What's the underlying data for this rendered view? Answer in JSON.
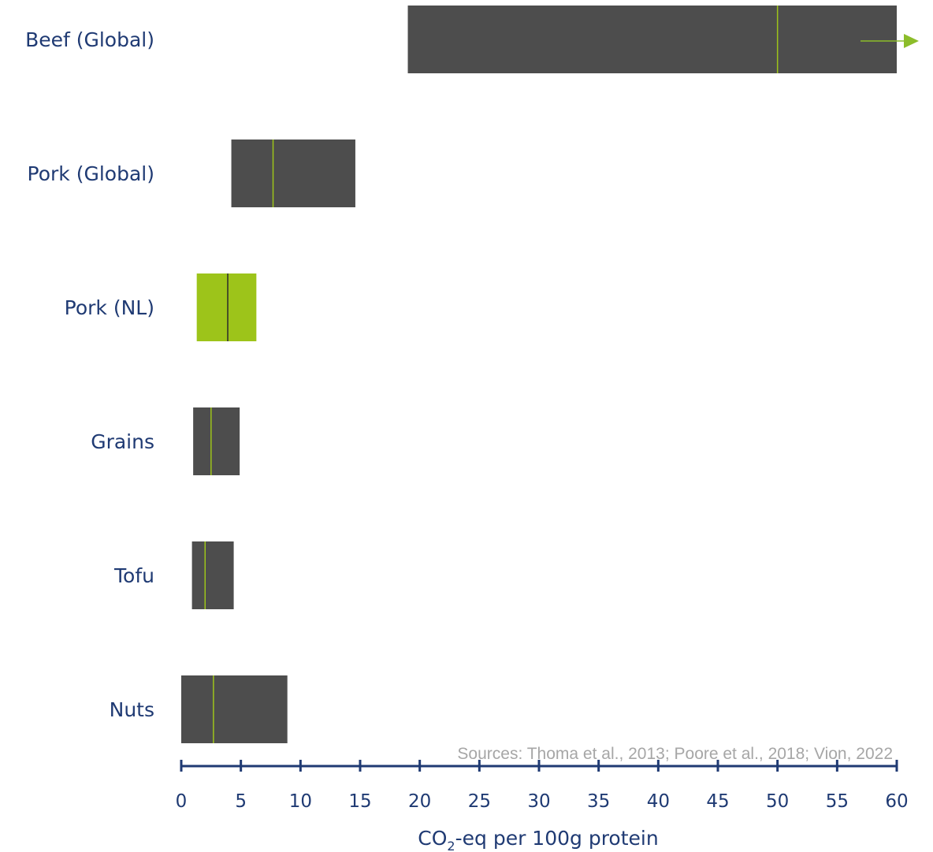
{
  "chart_data": {
    "type": "boxplot-range",
    "orientation": "horizontal",
    "categories": [
      "Beef (Global)",
      "Pork (Global)",
      "Pork (NL)",
      "Grains",
      "Tofu",
      "Nuts"
    ],
    "ranges": [
      {
        "category": "Beef (Global)",
        "min": 19,
        "median": 50,
        "max": 60,
        "extends_beyond_axis": true,
        "highlight": false
      },
      {
        "category": "Pork (Global)",
        "min": 4.2,
        "median": 7.7,
        "max": 14.6,
        "highlight": false
      },
      {
        "category": "Pork (NL)",
        "min": 1.3,
        "median": 3.9,
        "max": 6.3,
        "highlight": true
      },
      {
        "category": "Grains",
        "min": 1.0,
        "median": 2.5,
        "max": 4.9,
        "highlight": false
      },
      {
        "category": "Tofu",
        "min": 0.9,
        "median": 2.0,
        "max": 4.4,
        "highlight": false
      },
      {
        "category": "Nuts",
        "min": 0.0,
        "median": 2.7,
        "max": 8.9,
        "highlight": false
      }
    ],
    "xlim": [
      0,
      60
    ],
    "xticks": [
      0,
      5,
      10,
      15,
      20,
      25,
      30,
      35,
      40,
      45,
      50,
      55,
      60
    ],
    "xlabel": {
      "before": "CO",
      "sub": "2",
      "after": "-eq per 100g protein"
    },
    "source_note": "Sources: Thoma et al., 2013; Poore et al., 2018; Vion, 2022",
    "colors": {
      "bar": "#4d4d4d",
      "highlight": "#9dc41a",
      "median_on_dark": "#9dc41a",
      "median_on_highlight": "#2b2b2b",
      "arrow": "#8cbd2a",
      "axis": "#1f3a73",
      "text": "#1f3a73",
      "source": "#a6a6a6"
    }
  }
}
